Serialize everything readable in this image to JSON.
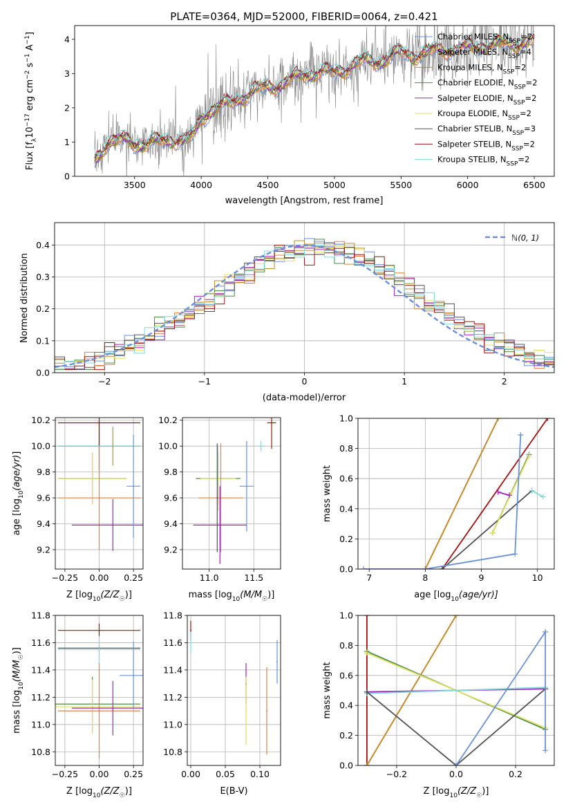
{
  "colors": {
    "chabrier_miles": "#6b8fd6",
    "salpeter_miles": "#e28040",
    "kroupa_miles": "#bf8a2a",
    "chabrier_elodie": "#4a8a4a",
    "salpeter_elodie": "#a020c0",
    "kroupa_elodie": "#e0e060",
    "chabrier_stelib": "#505050",
    "salpeter_stelib": "#a01010",
    "kroupa_stelib": "#80d8d8",
    "gauss": "#6a8fd8",
    "data": "#808080"
  },
  "chart_data": [
    {
      "id": "spectrum",
      "type": "line",
      "title": "PLATE=0364, MJD=52000, FIBERID=0064, z=0.421",
      "xlabel": "wavelength [Angstrom, rest frame]",
      "ylabel": "Flux [f$_\\lambda$10$^{-17}$ erg cm$^{-2}$ s$^{-1}$ A$^{-1}$]",
      "xlim": [
        3050,
        6650
      ],
      "ylim": [
        0,
        4.4
      ],
      "xticks": [
        3500,
        4000,
        4500,
        5000,
        5500,
        6000,
        6500
      ],
      "yticks": [
        0,
        1,
        2,
        3,
        4
      ],
      "legend": "upper right",
      "series": [
        {
          "key": "chabrier_miles",
          "label": "Chabrier MILES, N",
          "sub": "SSP",
          "suffix": "=2"
        },
        {
          "key": "salpeter_miles",
          "label": "Salpeter MILES, N",
          "sub": "SSP",
          "suffix": "=4"
        },
        {
          "key": "kroupa_miles",
          "label": "Kroupa MILES, N",
          "sub": "SSP",
          "suffix": "=2"
        },
        {
          "key": "chabrier_elodie",
          "label": "Chabrier ELODIE, N",
          "sub": "SSP",
          "suffix": "=2"
        },
        {
          "key": "salpeter_elodie",
          "label": "Salpeter ELODIE, N",
          "sub": "SSP",
          "suffix": "=2"
        },
        {
          "key": "kroupa_elodie",
          "label": "Kroupa ELODIE, N",
          "sub": "SSP",
          "suffix": "=2"
        },
        {
          "key": "chabrier_stelib",
          "label": "Chabrier STELIB, N",
          "sub": "SSP",
          "suffix": "=3"
        },
        {
          "key": "salpeter_stelib",
          "label": "Salpeter STELIB, N",
          "sub": "SSP",
          "suffix": "=2"
        },
        {
          "key": "kroupa_stelib",
          "label": "Kroupa STELIB, N",
          "sub": "SSP",
          "suffix": "=2"
        }
      ],
      "model_continuum": {
        "x": [
          3200,
          3300,
          3400,
          3500,
          3600,
          3700,
          3800,
          3900,
          3950,
          4000,
          4100,
          4200,
          4300,
          4400,
          4500,
          4600,
          4700,
          4800,
          4900,
          5000,
          5100,
          5200,
          5300,
          5400,
          5500,
          5600,
          5700,
          5800,
          5900,
          6000,
          6100,
          6200,
          6300,
          6400,
          6500
        ],
        "y": [
          0.4,
          1.05,
          1.05,
          0.95,
          1.0,
          1.0,
          1.1,
          1.05,
          1.2,
          1.7,
          2.0,
          2.1,
          2.3,
          2.5,
          2.6,
          2.7,
          2.85,
          3.0,
          3.05,
          3.0,
          3.2,
          3.35,
          3.35,
          3.45,
          3.6,
          3.55,
          3.6,
          3.7,
          3.7,
          3.75,
          3.8,
          3.85,
          3.85,
          3.9,
          3.95
        ]
      }
    },
    {
      "id": "residuals",
      "type": "line",
      "xlabel": "(data-model)/error",
      "ylabel": "Normed distribution",
      "xlim": [
        -2.5,
        2.5
      ],
      "ylim": [
        0,
        0.47
      ],
      "xticks": [
        -2,
        -1,
        0,
        1,
        2
      ],
      "yticks": [
        0.0,
        0.1,
        0.2,
        0.3,
        0.4
      ],
      "grid": true,
      "legend": "upper right",
      "gauss_label": "ℕ(0, 1)",
      "bin_width": 0.1
    },
    {
      "id": "age_vs_z",
      "type": "scatter",
      "xlabel": "Z [log",
      "xlabel_sub": "10",
      "xlabel_rest": "(Z/Z",
      "xlabel_end": ")]",
      "ylabel": "age  [log10(age/yr)]",
      "xlim": [
        -0.32,
        0.32
      ],
      "ylim": [
        9.05,
        10.22
      ],
      "xticks": [
        -0.25,
        0.0,
        0.25
      ],
      "yticks": [
        9.2,
        9.4,
        9.6,
        9.8,
        10.0,
        10.2
      ],
      "grid": true,
      "points": [
        {
          "key": "chabrier_stelib",
          "x": 0.0,
          "y": 10.0,
          "xerr": 0.3,
          "yerr": 0.18
        },
        {
          "key": "salpeter_stelib",
          "x": 0.0,
          "y": 10.18,
          "xerr": 0.3,
          "yerr": 0.2
        },
        {
          "key": "kroupa_stelib",
          "x": 0.0,
          "y": 10.0,
          "xerr": 0.3,
          "yerr": 0.0
        },
        {
          "key": "chabrier_elodie",
          "x": -0.05,
          "y": 9.75,
          "xerr": 0.25,
          "yerr": 0.2
        },
        {
          "key": "kroupa_elodie",
          "x": -0.05,
          "y": 9.75,
          "xerr": 0.25,
          "yerr": 0.2
        },
        {
          "key": "salpeter_miles",
          "x": 0.0,
          "y": 9.6,
          "xerr": 0.3,
          "yerr": 0.4
        },
        {
          "key": "salpeter_elodie",
          "x": 0.1,
          "y": 9.39,
          "xerr": 0.3,
          "yerr": 0.2
        },
        {
          "key": "kroupa_miles",
          "x": 0.1,
          "y": 10.0,
          "xerr": 0.0,
          "yerr": 0.15
        },
        {
          "key": "chabrier_miles",
          "x": 0.25,
          "y": 9.69,
          "xerr": 0.05,
          "yerr": 0.4
        }
      ]
    },
    {
      "id": "age_vs_mass",
      "type": "scatter",
      "xlabel": "mass [log",
      "xlabel_sub": "10",
      "xlabel_rest": "(M/M",
      "xlabel_end": ")]",
      "xlim": [
        10.7,
        11.8
      ],
      "ylim": [
        9.05,
        10.22
      ],
      "xticks": [
        11.0,
        11.5
      ],
      "yticks": [
        9.2,
        9.4,
        9.6,
        9.8,
        10.0,
        10.2
      ],
      "grid": true,
      "points": [
        {
          "key": "chabrier_elodie",
          "x": 11.1,
          "y": 9.75,
          "xerr": 0.25,
          "yerr": 0.2
        },
        {
          "key": "kroupa_elodie",
          "x": 11.1,
          "y": 9.75,
          "xerr": 0.2,
          "yerr": 0.25
        },
        {
          "key": "salpeter_miles",
          "x": 11.13,
          "y": 9.6,
          "xerr": 0.25,
          "yerr": 0.42
        },
        {
          "key": "salpeter_elodie",
          "x": 11.12,
          "y": 9.39,
          "xerr": 0.3,
          "yerr": 0.3
        },
        {
          "key": "chabrier_stelib",
          "x": 11.09,
          "y": 9.6,
          "xerr": 0.0,
          "yerr": 0.42
        },
        {
          "key": "salpeter_stelib",
          "x": 11.7,
          "y": 10.18,
          "xerr": 0.05,
          "yerr": 0.2
        },
        {
          "key": "kroupa_stelib",
          "x": 11.58,
          "y": 10.0,
          "xerr": 0.04,
          "yerr": 0.04
        },
        {
          "key": "chabrier_miles",
          "x": 11.42,
          "y": 9.69,
          "xerr": 0.08,
          "yerr": 0.35
        }
      ]
    },
    {
      "id": "weight_vs_age",
      "type": "line",
      "xlabel": "age  [log",
      "xlabel_sub": "10",
      "xlabel_rest": "(age/yr)]",
      "ylabel": "mass weight",
      "xlim": [
        6.8,
        10.3
      ],
      "ylim": [
        0,
        1
      ],
      "xticks": [
        7,
        8,
        9,
        10
      ],
      "yticks": [
        0.0,
        0.2,
        0.4,
        0.6,
        0.8,
        1.0
      ],
      "grid": true,
      "series": [
        {
          "key": "salpeter_miles",
          "x": [
            8.0,
            9.3
          ],
          "y": [
            0.0,
            1.0
          ]
        },
        {
          "key": "kroupa_miles",
          "x": [
            8.0,
            9.3
          ],
          "y": [
            0.0,
            1.0
          ]
        },
        {
          "key": "salpeter_stelib",
          "x": [
            8.3,
            10.18
          ],
          "y": [
            0.0,
            1.0
          ]
        },
        {
          "key": "chabrier_stelib",
          "x": [
            8.3,
            9.9
          ],
          "y": [
            0.0,
            0.52
          ]
        },
        {
          "key": "kroupa_stelib",
          "x": [
            9.9,
            10.1
          ],
          "y": [
            0.52,
            0.48
          ]
        },
        {
          "key": "chabrier_elodie",
          "x": [
            9.2,
            9.85
          ],
          "y": [
            0.24,
            0.76
          ]
        },
        {
          "key": "kroupa_elodie",
          "x": [
            9.2,
            9.85
          ],
          "y": [
            0.24,
            0.75
          ]
        },
        {
          "key": "salpeter_elodie",
          "x": [
            9.3,
            9.5
          ],
          "y": [
            0.51,
            0.49
          ]
        },
        {
          "key": "chabrier_miles",
          "x": [
            6.9,
            8.0,
            9.6,
            9.7
          ],
          "y": [
            0.0,
            0.0,
            0.1,
            0.89
          ]
        }
      ]
    },
    {
      "id": "mass_vs_z",
      "type": "scatter",
      "xlabel": "Z [log",
      "xlabel_sub": "10",
      "xlabel_rest": "(Z/Z",
      "xlabel_end": ")]",
      "ylabel": "mass [log10(M/M☉)]",
      "xlim": [
        -0.32,
        0.32
      ],
      "ylim": [
        10.7,
        11.8
      ],
      "xticks": [
        -0.25,
        0.0,
        0.25
      ],
      "yticks": [
        10.8,
        11.0,
        11.2,
        11.4,
        11.6,
        11.8
      ],
      "grid": true,
      "points": [
        {
          "key": "salpeter_stelib",
          "x": 0.0,
          "y": 11.69,
          "xerr": 0.3,
          "yerr": 0.05
        },
        {
          "key": "chabrier_stelib",
          "x": 0.0,
          "y": 11.56,
          "xerr": 0.3,
          "yerr": 0.02
        },
        {
          "key": "kroupa_stelib",
          "x": 0.0,
          "y": 11.55,
          "xerr": 0.3,
          "yerr": 0.1
        },
        {
          "key": "chabrier_elodie",
          "x": -0.05,
          "y": 11.15,
          "xerr": 0.35,
          "yerr": 0.2
        },
        {
          "key": "kroupa_elodie",
          "x": -0.05,
          "y": 11.13,
          "xerr": 0.35,
          "yerr": 0.2
        },
        {
          "key": "salpeter_miles",
          "x": 0.0,
          "y": 11.1,
          "xerr": 0.3,
          "yerr": 0.35
        },
        {
          "key": "salpeter_elodie",
          "x": 0.1,
          "y": 11.12,
          "xerr": 0.3,
          "yerr": 0.2
        },
        {
          "key": "chabrier_miles",
          "x": 0.25,
          "y": 11.36,
          "xerr": 0.1,
          "yerr": 0.25
        }
      ]
    },
    {
      "id": "mass_vs_ebv",
      "type": "scatter",
      "xlabel": "E(B-V)",
      "xlim": [
        -0.005,
        0.13
      ],
      "ylim": [
        10.7,
        11.8
      ],
      "xticks": [
        0.0,
        0.05,
        0.1
      ],
      "yticks": [
        10.8,
        11.0,
        11.2,
        11.4,
        11.6,
        11.8
      ],
      "grid": true,
      "points": [
        {
          "key": "salpeter_stelib",
          "x": 0.0,
          "y": 11.69,
          "xerr": 0,
          "yerr": 0.07
        },
        {
          "key": "kroupa_stelib",
          "x": 0.0,
          "y": 11.6,
          "xerr": 0,
          "yerr": 0.08
        },
        {
          "key": "salpeter_elodie",
          "x": 0.08,
          "y": 11.3,
          "xerr": 0,
          "yerr": 0.15
        },
        {
          "key": "kroupa_elodie",
          "x": 0.08,
          "y": 11.1,
          "xerr": 0,
          "yerr": 0.25
        },
        {
          "key": "salpeter_miles",
          "x": 0.11,
          "y": 11.1,
          "xerr": 0,
          "yerr": 0.32
        },
        {
          "key": "chabrier_miles",
          "x": 0.125,
          "y": 11.46,
          "xerr": 0,
          "yerr": 0.16
        }
      ]
    },
    {
      "id": "weight_vs_z",
      "type": "line",
      "xlabel": "Z [log",
      "xlabel_sub": "10",
      "xlabel_rest": "(Z/Z",
      "xlabel_end": ")]",
      "ylabel": "mass weight",
      "xlim": [
        -0.33,
        0.33
      ],
      "ylim": [
        0,
        1
      ],
      "xticks": [
        -0.2,
        0.0,
        0.2
      ],
      "yticks": [
        0.0,
        0.2,
        0.4,
        0.6,
        0.8,
        1.0
      ],
      "grid": true,
      "series": [
        {
          "key": "salpeter_stelib",
          "x": [
            -0.3,
            -0.3
          ],
          "y": [
            0.0,
            1.0
          ]
        },
        {
          "key": "salpeter_miles",
          "x": [
            -0.3,
            0.0
          ],
          "y": [
            0.0,
            1.0
          ]
        },
        {
          "key": "kroupa_miles",
          "x": [
            -0.3,
            0.0
          ],
          "y": [
            0.0,
            1.0
          ]
        },
        {
          "key": "chabrier_elodie",
          "x": [
            -0.3,
            0.3
          ],
          "y": [
            0.76,
            0.24
          ]
        },
        {
          "key": "kroupa_elodie",
          "x": [
            -0.3,
            0.3
          ],
          "y": [
            0.75,
            0.25
          ]
        },
        {
          "key": "salpeter_elodie",
          "x": [
            -0.3,
            0.3
          ],
          "y": [
            0.49,
            0.51
          ]
        },
        {
          "key": "kroupa_stelib",
          "x": [
            -0.3,
            0.3
          ],
          "y": [
            0.48,
            0.52
          ]
        },
        {
          "key": "chabrier_stelib",
          "x": [
            -0.3,
            0.0,
            0.3
          ],
          "y": [
            0.49,
            0.0,
            0.51
          ]
        },
        {
          "key": "chabrier_miles",
          "x": [
            0.0,
            0.3,
            0.3
          ],
          "y": [
            0.0,
            0.89,
            0.1
          ]
        }
      ]
    }
  ]
}
